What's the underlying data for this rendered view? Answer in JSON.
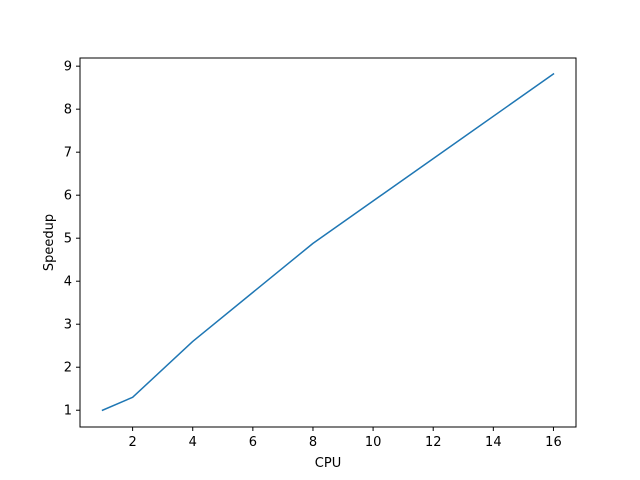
{
  "chart_data": {
    "type": "line",
    "title": "",
    "xlabel": "CPU",
    "ylabel": "Speedup",
    "xlim": [
      0.25,
      16.75
    ],
    "ylim": [
      0.61,
      9.19
    ],
    "xticks": [
      2,
      4,
      6,
      8,
      10,
      12,
      14,
      16
    ],
    "yticks": [
      1,
      2,
      3,
      4,
      5,
      6,
      7,
      8,
      9
    ],
    "grid": false,
    "legend": "none",
    "series": [
      {
        "color": "#1f77b4",
        "x": [
          1,
          2,
          4,
          8,
          16
        ],
        "y": [
          1.0,
          1.3,
          2.6,
          4.88,
          8.82
        ]
      }
    ]
  }
}
